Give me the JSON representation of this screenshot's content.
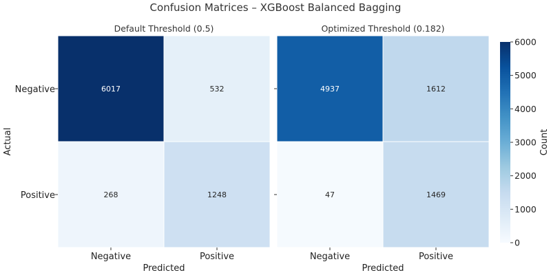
{
  "chart_data": {
    "type": "heatmap",
    "title": "Confusion Matrices – XGBoost Balanced Bagging",
    "panels": [
      {
        "subtitle": "Default Threshold (0.5)",
        "row_labels": [
          "Negative",
          "Positive"
        ],
        "col_labels": [
          "Negative",
          "Positive"
        ],
        "matrix": [
          [
            6017,
            532
          ],
          [
            268,
            1248
          ]
        ],
        "ylabel": "Actual",
        "xlabel": "Predicted"
      },
      {
        "subtitle": "Optimized Threshold (0.182)",
        "row_labels": [
          "Negative",
          "Positive"
        ],
        "col_labels": [
          "Negative",
          "Positive"
        ],
        "matrix": [
          [
            4937,
            1612
          ],
          [
            47,
            1469
          ]
        ],
        "ylabel": "",
        "xlabel": "Predicted"
      }
    ],
    "colorbar": {
      "label": "Count",
      "range": [
        0,
        6000
      ],
      "ticks": [
        "0",
        "1000",
        "2000",
        "3000",
        "4000",
        "5000",
        "6000"
      ],
      "colormap": "Blues"
    }
  }
}
